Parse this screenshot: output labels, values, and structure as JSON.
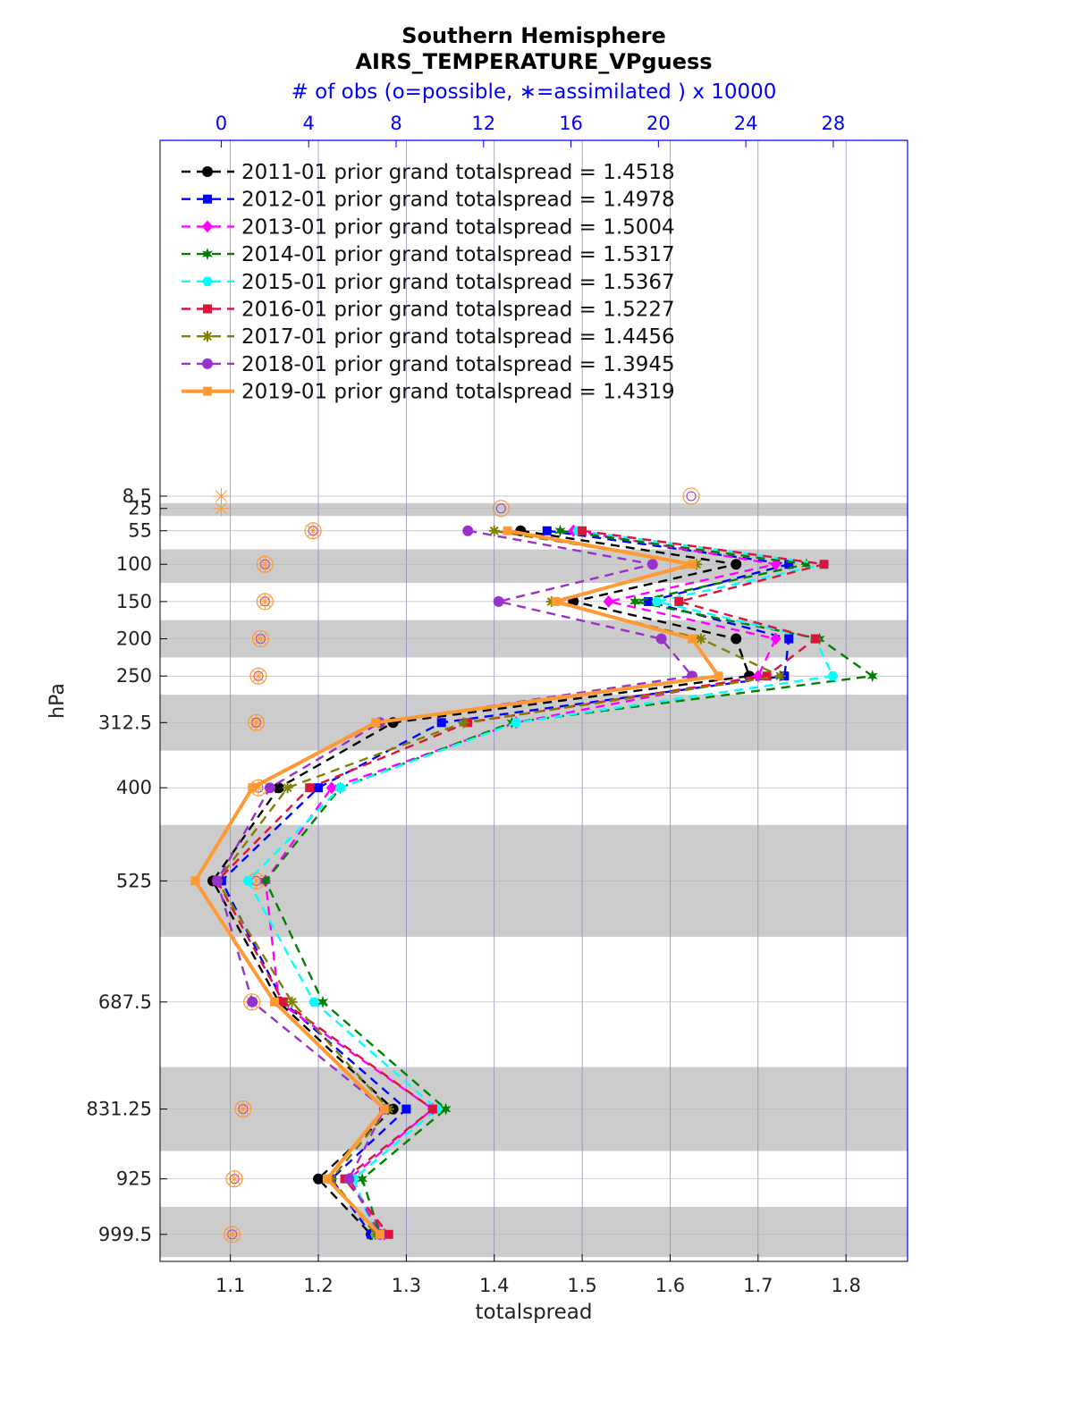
{
  "chart_data": {
    "type": "line",
    "title": "Southern Hemisphere",
    "subtitle": "AIRS_TEMPERATURE_VPguess",
    "top_axis_label": "# of obs (o=possible, ∗=assimilated ) x 10000",
    "xlabel": "totalspread",
    "ylabel": "hPa",
    "xlim": [
      1.02,
      1.87
    ],
    "x_ticks": [
      1.1,
      1.2,
      1.3,
      1.4,
      1.5,
      1.6,
      1.7,
      1.8
    ],
    "x_tick_labels": [
      "1.1",
      "1.2",
      "1.3",
      "1.4",
      "1.5",
      "1.6",
      "1.7",
      "1.8"
    ],
    "top_xlim": [
      -2.8,
      31.4
    ],
    "top_ticks": [
      0,
      4,
      8,
      12,
      16,
      20,
      24,
      28
    ],
    "top_tick_labels": [
      "0",
      "4",
      "8",
      "12",
      "16",
      "20",
      "24",
      "28"
    ],
    "levels": [
      8.5,
      25,
      55,
      100,
      150,
      200,
      250,
      312.5,
      400,
      525,
      687.5,
      831.25,
      925,
      999.5
    ],
    "level_labels": [
      "8.5",
      "25",
      "55",
      "100",
      "150",
      "200",
      "250",
      "312.5",
      "400",
      "525",
      "687.5",
      "831.25",
      "925",
      "999.5"
    ],
    "shaded_bands": [
      [
        18,
        35
      ],
      [
        80,
        125
      ],
      [
        175,
        225
      ],
      [
        275,
        350
      ],
      [
        450,
        600
      ],
      [
        775,
        887.5
      ],
      [
        962.5,
        1030
      ]
    ],
    "grid": true,
    "legend_position": "top-left",
    "series": [
      {
        "name": "2011-01 prior grand totalspread = 1.4518",
        "color": "#000000",
        "marker": "circle",
        "line": "dashed",
        "values": [
          null,
          null,
          1.43,
          1.675,
          1.49,
          1.675,
          1.69,
          1.285,
          1.155,
          1.08,
          1.155,
          1.285,
          1.2,
          1.26
        ]
      },
      {
        "name": "2012-01 prior grand totalspread = 1.4978",
        "color": "#0000ff",
        "marker": "square",
        "line": "dashed",
        "values": [
          null,
          null,
          1.46,
          1.735,
          1.575,
          1.735,
          1.73,
          1.34,
          1.2,
          1.09,
          1.16,
          1.3,
          1.215,
          1.26
        ]
      },
      {
        "name": "2013-01 prior grand totalspread = 1.5004",
        "color": "#ff00ff",
        "marker": "diamond",
        "line": "dashed",
        "values": [
          null,
          null,
          1.49,
          1.72,
          1.53,
          1.72,
          1.7,
          1.425,
          1.215,
          1.14,
          1.155,
          1.33,
          1.235,
          1.275
        ]
      },
      {
        "name": "2014-01 prior grand totalspread = 1.5317",
        "color": "#008000",
        "marker": "hexagram",
        "line": "dashed",
        "values": [
          null,
          null,
          1.475,
          1.755,
          1.56,
          1.77,
          1.83,
          1.42,
          1.225,
          1.14,
          1.205,
          1.345,
          1.25,
          1.27
        ]
      },
      {
        "name": "2015-01 prior grand totalspread = 1.5367",
        "color": "#00ffff",
        "marker": "hexagon",
        "line": "dashed",
        "values": [
          null,
          null,
          1.495,
          1.775,
          1.585,
          1.765,
          1.785,
          1.425,
          1.225,
          1.12,
          1.195,
          1.335,
          1.24,
          1.265
        ]
      },
      {
        "name": "2016-01 prior grand totalspread = 1.5227",
        "color": "#dc143c",
        "marker": "square",
        "line": "dashed",
        "values": [
          null,
          null,
          1.5,
          1.775,
          1.61,
          1.765,
          1.71,
          1.37,
          1.19,
          1.085,
          1.16,
          1.33,
          1.23,
          1.28
        ]
      },
      {
        "name": "2017-01 prior grand totalspread = 1.4456",
        "color": "#808000",
        "marker": "asterisk",
        "line": "dashed",
        "values": [
          null,
          null,
          1.4,
          1.63,
          1.465,
          1.635,
          1.725,
          1.365,
          1.165,
          1.085,
          1.17,
          1.28,
          1.215,
          1.265
        ]
      },
      {
        "name": "2018-01 prior grand totalspread = 1.3945",
        "color": "#9932cc",
        "marker": "circle",
        "line": "dashed",
        "values": [
          null,
          null,
          1.37,
          1.58,
          1.405,
          1.59,
          1.625,
          1.27,
          1.145,
          1.085,
          1.125,
          1.275,
          1.235,
          1.27
        ]
      },
      {
        "name": "2019-01 prior grand totalspread = 1.4319",
        "color": "#ff9933",
        "marker": "square",
        "line": "solid",
        "values": [
          null,
          null,
          1.415,
          1.625,
          1.47,
          1.625,
          1.655,
          1.265,
          1.125,
          1.06,
          1.15,
          1.275,
          1.21,
          1.27
        ]
      }
    ],
    "obs_counts": {
      "possible": [
        21.5,
        12.8,
        4.2,
        2.0,
        2.0,
        1.8,
        1.7,
        1.6,
        1.7,
        1.6,
        1.4,
        1.0,
        0.6,
        0.5
      ],
      "assimilated": [
        0.0,
        0.0,
        4.2,
        2.0,
        2.0,
        1.8,
        1.7,
        1.6,
        1.7,
        1.6,
        1.4,
        1.0,
        0.6,
        0.5
      ]
    },
    "colors": {
      "axis": "#000000",
      "top_axis": "#0000ff",
      "grid": "#8080cc",
      "band": "#cccccc",
      "obs_marker": "#ff9933"
    }
  }
}
